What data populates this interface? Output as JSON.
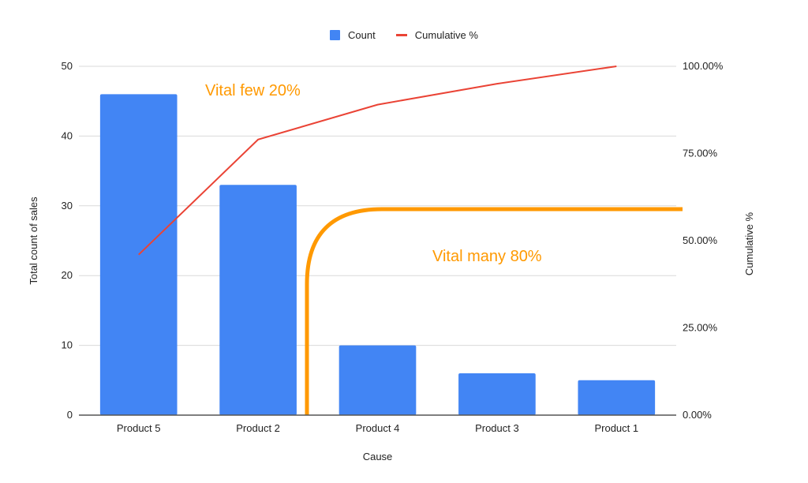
{
  "chart_data": {
    "type": "bar+line",
    "title": "",
    "categories": [
      "Product 5",
      "Product 2",
      "Product 4",
      "Product 3",
      "Product 1"
    ],
    "series": [
      {
        "name": "Count",
        "type": "bar",
        "axis": "left",
        "color": "#4285f4",
        "values": [
          46,
          33,
          10,
          6,
          5
        ]
      },
      {
        "name": "Cumulative %",
        "type": "line",
        "axis": "right",
        "color": "#ea4335",
        "values": [
          46,
          79,
          89,
          95,
          100
        ]
      }
    ],
    "xlabel": "Cause",
    "ylabel": "Total count of sales",
    "y2label": "Cumulative %",
    "ylim": [
      0,
      50
    ],
    "y2lim": [
      0,
      100
    ],
    "yticks": [
      "0",
      "10",
      "20",
      "30",
      "40",
      "50"
    ],
    "y2ticks": [
      "0.00%",
      "25.00%",
      "50.00%",
      "75.00%",
      "100.00%"
    ],
    "legend_position": "top",
    "grid": true,
    "annotations": [
      {
        "text": "Vital few 20%",
        "color": "#ff9900"
      },
      {
        "text": "Vital many 80%",
        "color": "#ff9900"
      }
    ]
  },
  "legend": {
    "items": [
      {
        "label": "Count",
        "color": "#4285f4"
      },
      {
        "label": "Cumulative %",
        "color": "#ea4335"
      }
    ]
  },
  "colors": {
    "bar": "#4285f4",
    "line": "#ea4335",
    "annotation": "#ff9900",
    "grid": "#d9d9d9",
    "axis": "#555555"
  }
}
